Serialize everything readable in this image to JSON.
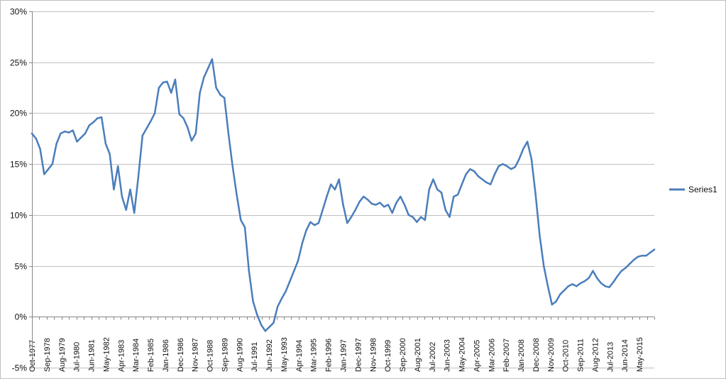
{
  "chart_data": {
    "type": "line",
    "title": "",
    "xlabel": "",
    "ylabel": "",
    "ylim": [
      -5,
      30
    ],
    "yticks": [
      -5,
      0,
      5,
      10,
      15,
      20,
      25,
      30
    ],
    "ytick_labels": [
      "-5%",
      "0%",
      "5%",
      "10%",
      "15%",
      "20%",
      "25%",
      "30%"
    ],
    "xlim": [
      "1977-10",
      "2015-10"
    ],
    "xtick_labels": [
      "Oct-1977",
      "Sep-1978",
      "Aug-1979",
      "Jul-1980",
      "Jun-1981",
      "May-1982",
      "Apr-1983",
      "Mar-1984",
      "Feb-1985",
      "Jan-1986",
      "Dec-1986",
      "Nov-1987",
      "Oct-1988",
      "Sep-1989",
      "Aug-1990",
      "Jul-1991",
      "Jun-1992",
      "May-1993",
      "Apr-1994",
      "Mar-1995",
      "Feb-1996",
      "Jan-1997",
      "Dec-1997",
      "Nov-1998",
      "Oct-1999",
      "Sep-2000",
      "Aug-2001",
      "Jul-2002",
      "Jun-2003",
      "May-2004",
      "Apr-2005",
      "Mar-2006",
      "Feb-2007",
      "Jan-2008",
      "Dec-2008",
      "Nov-2009",
      "Oct-2010",
      "Sep-2011",
      "Aug-2012",
      "Jul-2013",
      "Jun-2014",
      "May-2015"
    ],
    "grid": true,
    "legend_position": "right",
    "color": "#4a7ebb",
    "series": [
      {
        "name": "Series1",
        "x": [
          "1977-10",
          "1978-01",
          "1978-04",
          "1978-07",
          "1978-10",
          "1979-01",
          "1979-04",
          "1979-07",
          "1979-10",
          "1980-01",
          "1980-04",
          "1980-07",
          "1980-10",
          "1981-01",
          "1981-04",
          "1981-07",
          "1981-10",
          "1982-01",
          "1982-04",
          "1982-07",
          "1982-10",
          "1983-01",
          "1983-04",
          "1983-07",
          "1983-10",
          "1984-01",
          "1984-04",
          "1984-07",
          "1984-10",
          "1985-01",
          "1985-04",
          "1985-07",
          "1985-10",
          "1986-01",
          "1986-04",
          "1986-07",
          "1986-10",
          "1987-01",
          "1987-04",
          "1987-07",
          "1987-10",
          "1988-01",
          "1988-04",
          "1988-07",
          "1988-10",
          "1989-01",
          "1989-04",
          "1989-07",
          "1989-10",
          "1990-01",
          "1990-04",
          "1990-07",
          "1990-10",
          "1991-01",
          "1991-04",
          "1991-07",
          "1991-10",
          "1992-01",
          "1992-04",
          "1992-07",
          "1992-10",
          "1993-01",
          "1993-04",
          "1993-07",
          "1993-10",
          "1994-01",
          "1994-04",
          "1994-07",
          "1994-10",
          "1995-01",
          "1995-04",
          "1995-07",
          "1995-10",
          "1996-01",
          "1996-04",
          "1996-07",
          "1996-10",
          "1997-01",
          "1997-04",
          "1997-07",
          "1997-10",
          "1998-01",
          "1998-04",
          "1998-07",
          "1998-10",
          "1999-01",
          "1999-04",
          "1999-07",
          "1999-10",
          "2000-01",
          "2000-04",
          "2000-07",
          "2000-10",
          "2001-01",
          "2001-04",
          "2001-07",
          "2001-10",
          "2002-01",
          "2002-04",
          "2002-07",
          "2002-10",
          "2003-01",
          "2003-04",
          "2003-07",
          "2003-10",
          "2004-01",
          "2004-04",
          "2004-07",
          "2004-10",
          "2005-01",
          "2005-04",
          "2005-07",
          "2005-10",
          "2006-01",
          "2006-04",
          "2006-07",
          "2006-10",
          "2007-01",
          "2007-04",
          "2007-07",
          "2007-10",
          "2008-01",
          "2008-04",
          "2008-07",
          "2008-10",
          "2009-01",
          "2009-04",
          "2009-07",
          "2009-10",
          "2010-01",
          "2010-04",
          "2010-07",
          "2010-10",
          "2011-01",
          "2011-04",
          "2011-07",
          "2011-10",
          "2012-01",
          "2012-04",
          "2012-07",
          "2012-10",
          "2013-01",
          "2013-04",
          "2013-07",
          "2013-10",
          "2014-01",
          "2014-04",
          "2014-07",
          "2014-10",
          "2015-01",
          "2015-04",
          "2015-07",
          "2015-10"
        ],
        "values": [
          18.0,
          17.5,
          16.5,
          14.0,
          14.5,
          15.0,
          17.0,
          18.0,
          18.2,
          18.1,
          18.3,
          17.2,
          17.6,
          18.0,
          18.8,
          19.1,
          19.5,
          19.6,
          17.0,
          16.0,
          12.5,
          14.8,
          11.8,
          10.5,
          12.5,
          10.2,
          13.8,
          17.8,
          18.5,
          19.2,
          20.0,
          22.5,
          23.0,
          23.1,
          22.0,
          23.3,
          19.9,
          19.5,
          18.6,
          17.3,
          18.0,
          22.0,
          23.5,
          24.4,
          25.3,
          22.5,
          21.8,
          21.5,
          18.0,
          14.8,
          12.0,
          9.5,
          8.8,
          4.5,
          1.5,
          0.2,
          -0.8,
          -1.4,
          -1.0,
          -0.6,
          1.0,
          1.8,
          2.5,
          3.5,
          4.5,
          5.5,
          7.2,
          8.5,
          9.3,
          9.0,
          9.2,
          10.5,
          11.8,
          13.0,
          12.5,
          13.5,
          11.0,
          9.2,
          9.8,
          10.5,
          11.3,
          11.8,
          11.5,
          11.1,
          11.0,
          11.2,
          10.8,
          11.0,
          10.2,
          11.2,
          11.8,
          11.0,
          10.0,
          9.8,
          9.3,
          9.8,
          9.5,
          12.5,
          13.5,
          12.5,
          12.2,
          10.5,
          9.8,
          11.8,
          12.0,
          13.0,
          14.0,
          14.5,
          14.3,
          13.8,
          13.5,
          13.2,
          13.0,
          14.0,
          14.8,
          15.0,
          14.8,
          14.5,
          14.7,
          15.5,
          16.5,
          17.2,
          15.5,
          12.0,
          8.0,
          5.0,
          3.0,
          1.2,
          1.5,
          2.2,
          2.6,
          3.0,
          3.2,
          3.0,
          3.3,
          3.5,
          3.8,
          4.5,
          3.8,
          3.3,
          3.0,
          2.9,
          3.4,
          4.0,
          4.5,
          4.8,
          5.2,
          5.6,
          5.9,
          6.0,
          6.0,
          6.3,
          6.6
        ]
      }
    ]
  }
}
